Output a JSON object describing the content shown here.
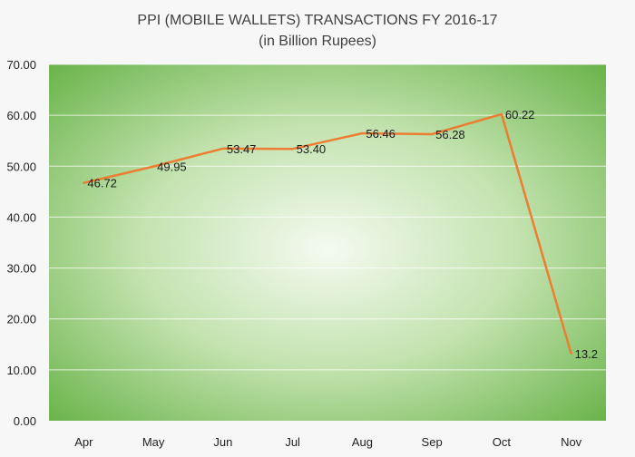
{
  "chart_data": {
    "type": "line",
    "title": "PPI (MOBILE WALLETS) TRANSACTIONS FY 2016-17",
    "subtitle": "(in Billion Rupees)",
    "xlabel": "",
    "ylabel": "",
    "categories": [
      "Apr",
      "May",
      "Jun",
      "Jul",
      "Aug",
      "Sep",
      "Oct",
      "Nov"
    ],
    "series": [
      {
        "values": [
          46.72,
          49.95,
          53.47,
          53.4,
          56.46,
          56.28,
          60.22,
          13.2
        ],
        "data_labels": [
          "46.72",
          "49.95",
          "53.47",
          "53.40",
          "56.46",
          "56.28",
          "60.22",
          "13.2"
        ]
      }
    ],
    "ylim": [
      0,
      70
    ],
    "yticks": [
      "0.00",
      "10.00",
      "20.00",
      "30.00",
      "40.00",
      "50.00",
      "60.00",
      "70.00"
    ],
    "grid": true,
    "legend": "none",
    "colors": {
      "line": "#ed7d31",
      "plot_center": "#f4faf0",
      "plot_edge": "#5fae3e",
      "gridline": "#ffffff",
      "text": "#222222"
    }
  }
}
